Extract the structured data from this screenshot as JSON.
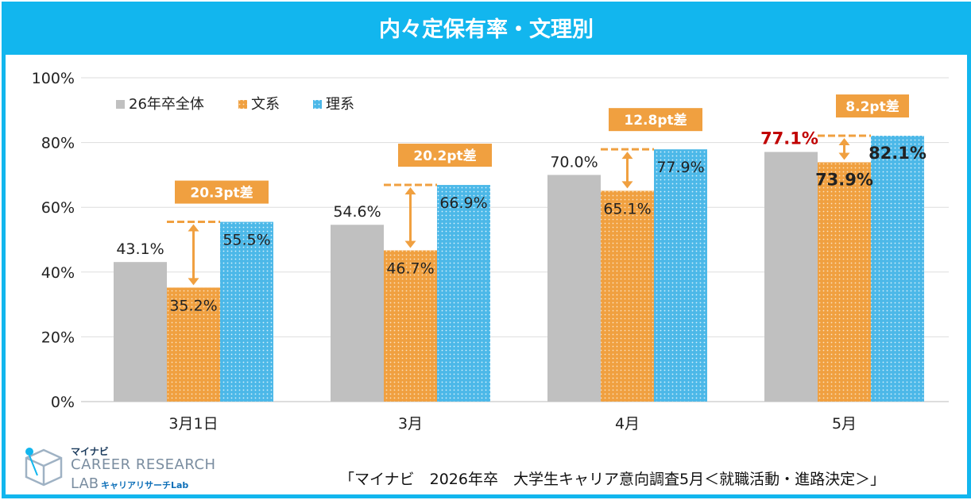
{
  "title": "内々定保有率・文理別",
  "chart_data": {
    "type": "bar",
    "title": "内々定保有率・文理別",
    "categories": [
      "3月1日",
      "3月",
      "4月",
      "5月"
    ],
    "series": [
      {
        "name": "26年卒全体",
        "values": [
          43.1,
          54.6,
          70.0,
          77.1
        ],
        "labels": [
          "43.1%",
          "54.6%",
          "70.0%",
          "77.1%"
        ],
        "color": "#c0c0c0"
      },
      {
        "name": "文系",
        "values": [
          35.2,
          46.7,
          65.1,
          73.9
        ],
        "labels": [
          "35.2%",
          "46.7%",
          "65.1%",
          "73.9%"
        ],
        "color": "#f0a040"
      },
      {
        "name": "理系",
        "values": [
          55.5,
          66.9,
          77.9,
          82.1
        ],
        "labels": [
          "55.5%",
          "66.9%",
          "77.9%",
          "82.1%"
        ],
        "color": "#4cb8e8"
      }
    ],
    "gap_labels": [
      "20.3pt差",
      "20.2pt差",
      "12.8pt差",
      "8.2pt差"
    ],
    "yticks": [
      "0%",
      "20%",
      "40%",
      "60%",
      "80%",
      "100%"
    ],
    "ylim": [
      0,
      100
    ],
    "grid": true,
    "legend": "top-left",
    "highlight_color": "#c00000",
    "gap_color": "#f0a040"
  },
  "source": "「マイナビ　2026年卒　大学生キャリア意向調査5月＜就職活動・進路決定＞」",
  "brand": {
    "top": "マイナビ",
    "name": "CAREER RESEARCH",
    "lab": "LAB",
    "sub": "キャリアリサーチLab"
  }
}
